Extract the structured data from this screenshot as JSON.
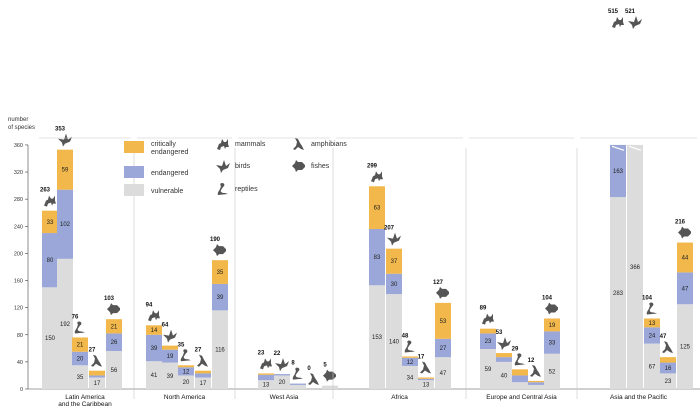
{
  "chart_data": {
    "type": "bar",
    "stacked": true,
    "ylabel": "number of species",
    "ylim": [
      0,
      360
    ],
    "yticks": [
      0,
      40,
      80,
      120,
      160,
      200,
      240,
      280,
      320,
      360
    ],
    "grid": false,
    "legend": {
      "status": [
        {
          "key": "critically",
          "label": "critically endangered",
          "color": "#f2b84b"
        },
        {
          "key": "endangered",
          "label": "endangered",
          "color": "#9aa7d8"
        },
        {
          "key": "vulnerable",
          "label": "vulnerable",
          "color": "#dcdcdc"
        }
      ],
      "groups": [
        {
          "key": "mammals",
          "label": "mammals",
          "icon": "wolf-icon"
        },
        {
          "key": "birds",
          "label": "birds",
          "icon": "bird-icon"
        },
        {
          "key": "reptiles",
          "label": "reptiles",
          "icon": "snake-icon"
        },
        {
          "key": "amphibians",
          "label": "amphibians",
          "icon": "frog-icon"
        },
        {
          "key": "fishes",
          "label": "fishes",
          "icon": "fish-icon"
        }
      ]
    },
    "regions": [
      {
        "name": "Latin America and the Caribbean",
        "label_lines": [
          "Latin America",
          "and the Caribbean"
        ],
        "bars": [
          {
            "group": "mammals",
            "total": 263,
            "vulnerable": 150,
            "endangered": 80,
            "critically": 33
          },
          {
            "group": "birds",
            "total": 353,
            "vulnerable": 192,
            "endangered": 102,
            "critically": 59
          },
          {
            "group": "reptiles",
            "total": 76,
            "vulnerable": 35,
            "endangered": 20,
            "critically": 21
          },
          {
            "group": "amphibians",
            "total": 27,
            "vulnerable": 17,
            "endangered": 3,
            "critically": 7
          },
          {
            "group": "fishes",
            "total": 103,
            "vulnerable": 56,
            "endangered": 26,
            "critically": 21
          }
        ]
      },
      {
        "name": "North America",
        "label_lines": [
          "North America"
        ],
        "bars": [
          {
            "group": "mammals",
            "total": 94,
            "vulnerable": 41,
            "endangered": 39,
            "critically": 14
          },
          {
            "group": "birds",
            "total": 64,
            "vulnerable": 39,
            "endangered": 19,
            "critically": 6
          },
          {
            "group": "reptiles",
            "total": 35,
            "vulnerable": 20,
            "endangered": 12,
            "critically": 3
          },
          {
            "group": "amphibians",
            "total": 27,
            "vulnerable": 17,
            "endangered": 6,
            "critically": 4
          },
          {
            "group": "fishes",
            "total": 190,
            "vulnerable": 116,
            "endangered": 39,
            "critically": 35
          }
        ]
      },
      {
        "name": "West Asia",
        "label_lines": [
          "West Asia"
        ],
        "bars": [
          {
            "group": "mammals",
            "total": 23,
            "vulnerable": 13,
            "endangered": 8,
            "critically": 2
          },
          {
            "group": "birds",
            "total": 22,
            "vulnerable": 20,
            "endangered": 2,
            "critically": 0
          },
          {
            "group": "reptiles",
            "total": 8,
            "vulnerable": 6,
            "endangered": 2,
            "critically": 0
          },
          {
            "group": "amphibians",
            "total": 0,
            "vulnerable": 0,
            "endangered": 0,
            "critically": 0
          },
          {
            "group": "fishes",
            "total": 5,
            "vulnerable": 5,
            "endangered": 0,
            "critically": 0
          }
        ]
      },
      {
        "name": "Africa",
        "label_lines": [
          "Africa"
        ],
        "bars": [
          {
            "group": "mammals",
            "total": 299,
            "vulnerable": 153,
            "endangered": 83,
            "critically": 63
          },
          {
            "group": "birds",
            "total": 207,
            "vulnerable": 140,
            "endangered": 30,
            "critically": 37
          },
          {
            "group": "reptiles",
            "total": 48,
            "vulnerable": 34,
            "endangered": 12,
            "critically": 2
          },
          {
            "group": "amphibians",
            "total": 17,
            "vulnerable": 13,
            "endangered": 2,
            "critically": 2
          },
          {
            "group": "fishes",
            "total": 127,
            "vulnerable": 47,
            "endangered": 27,
            "critically": 53
          }
        ]
      },
      {
        "name": "Europe and Central Asia",
        "label_lines": [
          "Europe and Central Asia"
        ],
        "bars": [
          {
            "group": "mammals",
            "total": 89,
            "vulnerable": 59,
            "endangered": 23,
            "critically": 7
          },
          {
            "group": "birds",
            "total": 53,
            "vulnerable": 40,
            "endangered": 7,
            "critically": 6
          },
          {
            "group": "reptiles",
            "total": 29,
            "vulnerable": 10,
            "endangered": 10,
            "critically": 9
          },
          {
            "group": "amphibians",
            "total": 12,
            "vulnerable": 6,
            "endangered": 4,
            "critically": 2
          },
          {
            "group": "fishes",
            "total": 104,
            "vulnerable": 52,
            "endangered": 33,
            "critically": 19
          }
        ]
      },
      {
        "name": "Asia and the Pacific",
        "label_lines": [
          "Asia and the Pacific"
        ],
        "bars": [
          {
            "group": "mammals",
            "total": 515,
            "vulnerable": 283,
            "endangered": 163,
            "critically": 69
          },
          {
            "group": "birds",
            "total": 521,
            "vulnerable": 366,
            "endangered": 95,
            "critically": 60
          },
          {
            "group": "reptiles",
            "total": 104,
            "vulnerable": 67,
            "endangered": 24,
            "critically": 13
          },
          {
            "group": "amphibians",
            "total": 47,
            "vulnerable": 23,
            "endangered": 16,
            "critically": 8
          },
          {
            "group": "fishes",
            "total": 216,
            "vulnerable": 125,
            "endangered": 47,
            "critically": 44
          }
        ]
      }
    ]
  }
}
